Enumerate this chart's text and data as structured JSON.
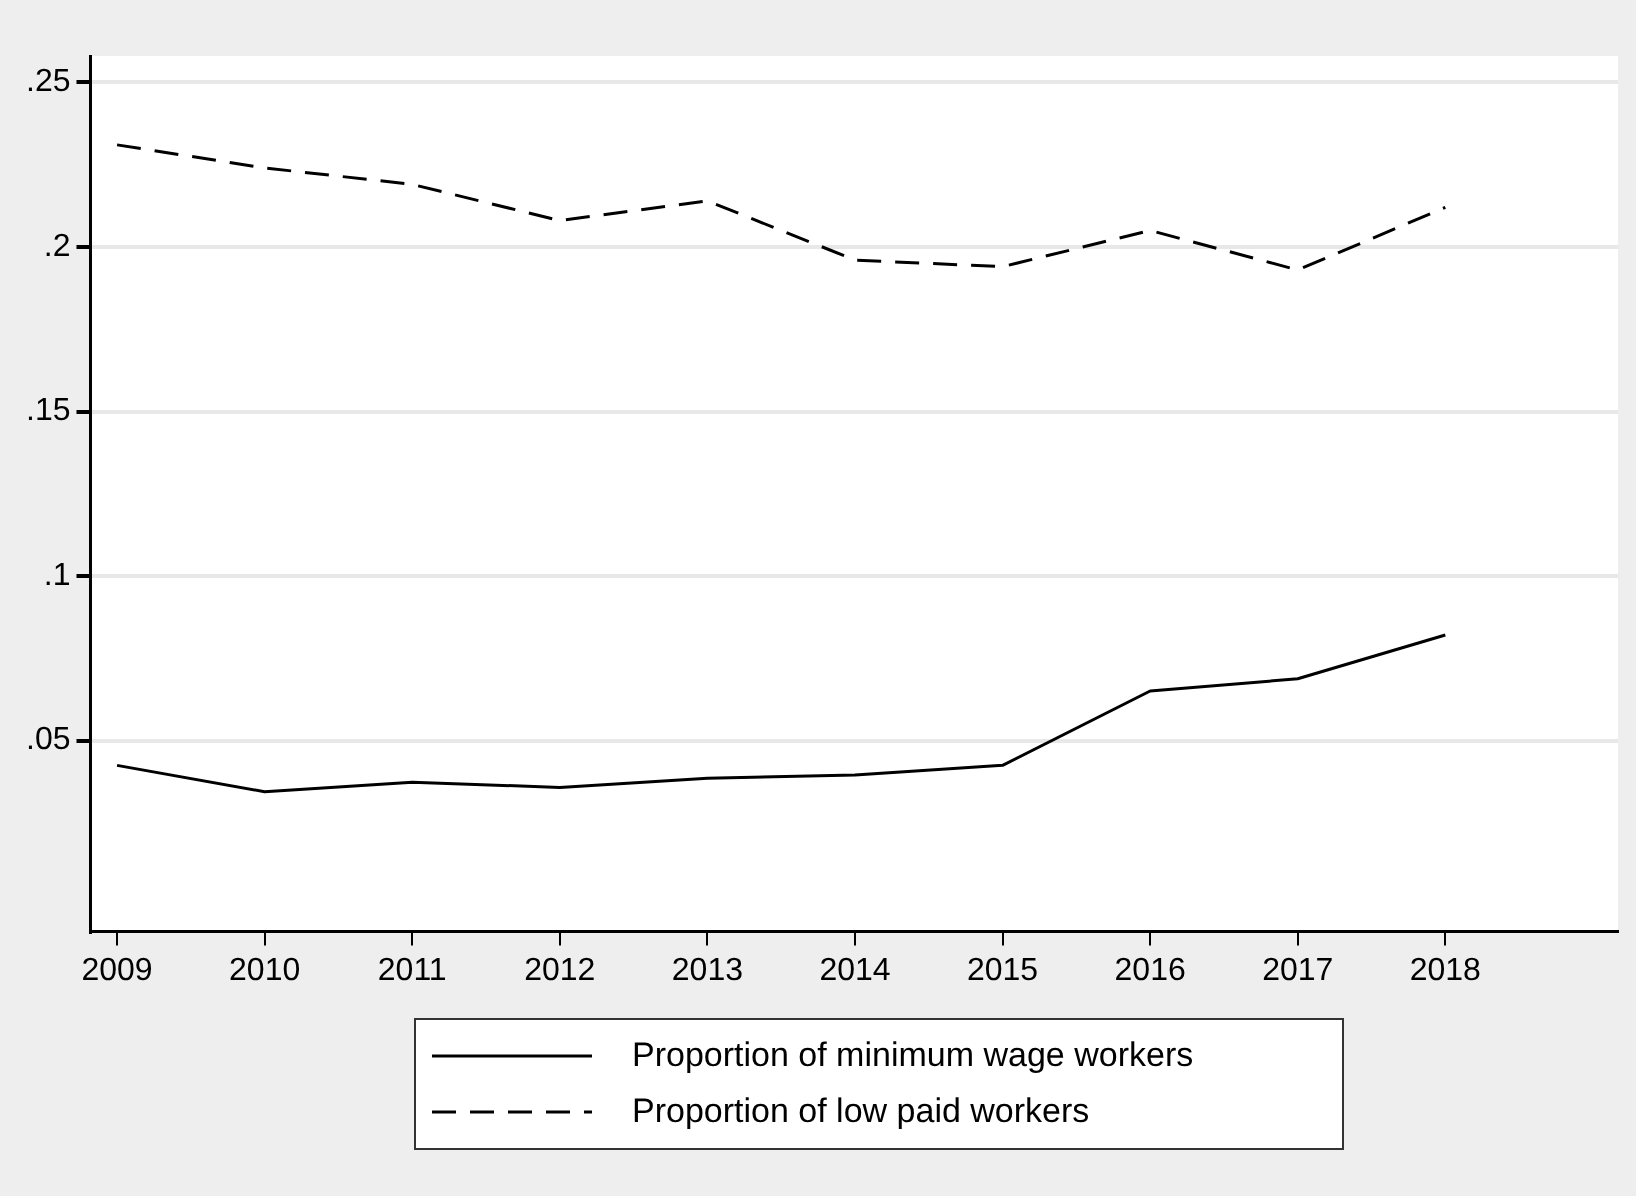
{
  "chart_data": {
    "type": "line",
    "x": [
      2009,
      2010,
      2011,
      2012,
      2013,
      2014,
      2015,
      2016,
      2017,
      2018
    ],
    "series": [
      {
        "name": "Proportion of minimum wage workers",
        "color": "#000000",
        "line_style": "solid",
        "values": [
          0.0425,
          0.0345,
          0.0374,
          0.0358,
          0.0386,
          0.0396,
          0.0425,
          0.0651,
          0.0688,
          0.0821
        ]
      },
      {
        "name": "Proportion of low paid workers",
        "color": "#000000",
        "line_style": "dashed",
        "values": [
          0.231,
          0.224,
          0.219,
          0.208,
          0.214,
          0.196,
          0.194,
          0.205,
          0.193,
          0.212
        ]
      }
    ],
    "xlim": [
      2008.82,
      2019.17
    ],
    "xticks": [
      2009,
      2010,
      2011,
      2012,
      2013,
      2014,
      2015,
      2016,
      2017,
      2018
    ],
    "ylim": [
      -0.008,
      0.258
    ],
    "yticks": [
      {
        "value": 0.05,
        "label": ".05"
      },
      {
        "value": 0.1,
        "label": ".1"
      },
      {
        "value": 0.15,
        "label": ".15"
      },
      {
        "value": 0.2,
        "label": ".2"
      },
      {
        "value": 0.25,
        "label": ".25"
      }
    ],
    "grid": "y",
    "legend": "bottom",
    "marker": "none"
  }
}
